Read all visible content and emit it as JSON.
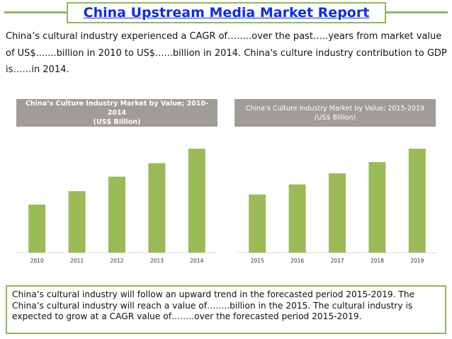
{
  "header": {
    "title": "China Upstream Media Market Report",
    "accent_color": "#92b75a",
    "title_color": "#0a2ee8"
  },
  "intro": {
    "text": "China’s cultural industry experienced a CAGR of……..over the past…..years from market value of US$.......billion in 2010 to US$......billion in 2014. China's culture industry contribution to GDP is……in 2014."
  },
  "chart_data": [
    {
      "type": "bar",
      "title_lines": [
        "China’s Culture Industry Market by Value; 2010-2014",
        "(US$ Billion)"
      ],
      "xlabel": "",
      "ylabel": "",
      "categories": [
        "2010",
        "2011",
        "2012",
        "2013",
        "2014"
      ],
      "values": [
        43,
        55,
        68,
        80,
        93
      ],
      "ylim": [
        0,
        100
      ],
      "bar_color": "#9bbb59",
      "header_color": "#a09d97"
    },
    {
      "type": "bar",
      "title_lines": [
        "China’s Culture Industry Market by Value; 2015-2019",
        "(US$ Billion)"
      ],
      "xlabel": "",
      "ylabel": "",
      "categories": [
        "2015",
        "2016",
        "2017",
        "2018",
        "2019"
      ],
      "values": [
        52,
        61,
        71,
        81,
        93
      ],
      "ylim": [
        0,
        100
      ],
      "bar_color": "#9bbb59",
      "header_color": "#a09d97"
    }
  ],
  "summary": {
    "text": "China’s cultural industry will follow an upward trend in the forecasted period 2015-2019. The China’s cultural industry will reach a value of……..billion in the 2015. The cultural industry is expected to grow at a CAGR value of……..over the forecasted period 2015-2019."
  }
}
